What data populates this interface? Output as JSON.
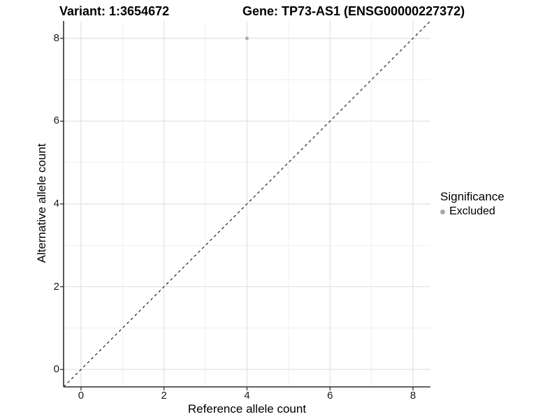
{
  "colors": {
    "background": "#ffffff",
    "grid_major": "#e2e2e2",
    "grid_minor": "#eeeeee",
    "axis_line": "#2f2f2f",
    "tick_mark": "#2f2f2f",
    "dashed_line": "#111111",
    "point": "#a9a9a9",
    "legend_point": "#a9a9a9"
  },
  "chart_data": {
    "type": "scatter",
    "title_variant": "Variant: 1:3654672",
    "title_gene": "Gene: TP73-AS1 (ENSG00000227372)",
    "xlabel": "Reference allele count",
    "ylabel": "Alternative allele count",
    "xlim": [
      -0.42,
      8.42
    ],
    "ylim": [
      -0.42,
      8.42
    ],
    "x_major_ticks": [
      0,
      2,
      4,
      6,
      8
    ],
    "y_major_ticks": [
      0,
      2,
      4,
      6,
      8
    ],
    "x_minor_ticks": [
      1,
      3,
      5,
      7
    ],
    "y_minor_ticks": [
      1,
      3,
      5,
      7
    ],
    "grid": "major+minor",
    "points": [
      {
        "x": 4,
        "y": 8,
        "series": "Excluded"
      }
    ],
    "identity_line": {
      "slope": 1,
      "intercept": 0,
      "style": "dashed"
    },
    "legend": {
      "title": "Significance",
      "position": "right",
      "items": [
        {
          "label": "Excluded",
          "color": "#a9a9a9"
        }
      ]
    }
  }
}
